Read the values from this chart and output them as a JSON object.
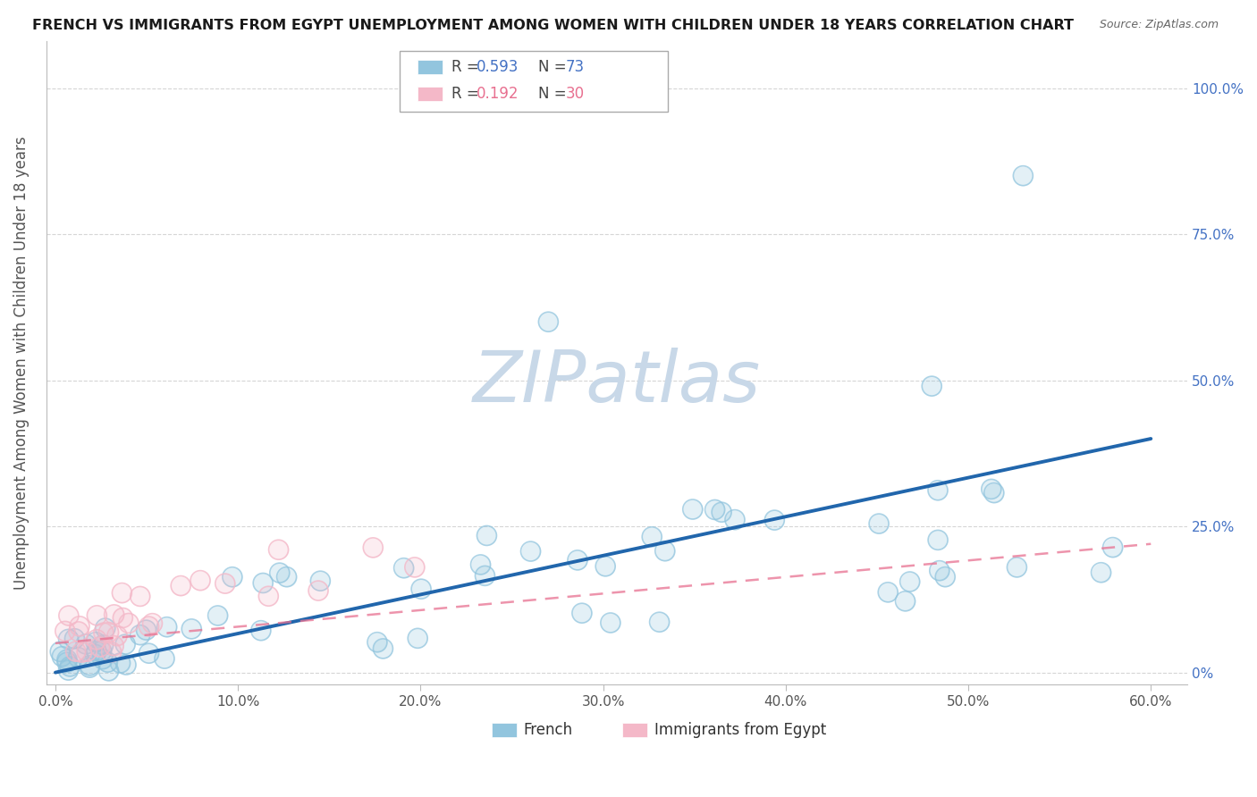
{
  "title": "FRENCH VS IMMIGRANTS FROM EGYPT UNEMPLOYMENT AMONG WOMEN WITH CHILDREN UNDER 18 YEARS CORRELATION CHART",
  "source": "Source: ZipAtlas.com",
  "ylabel": "Unemployment Among Women with Children Under 18 years",
  "xlim": [
    -0.005,
    0.62
  ],
  "ylim": [
    -0.02,
    1.08
  ],
  "french_R": 0.593,
  "french_N": 73,
  "egypt_R": 0.192,
  "egypt_N": 30,
  "french_color": "#92C5DE",
  "egypt_color": "#F4B8C8",
  "french_line_color": "#2166AC",
  "egypt_line_color": "#E87090",
  "watermark": "ZIPatlas",
  "watermark_color": "#C8D8E8",
  "x_tick_vals": [
    0.0,
    0.1,
    0.2,
    0.3,
    0.4,
    0.5,
    0.6
  ],
  "x_tick_labels": [
    "0.0%",
    "10.0%",
    "20.0%",
    "30.0%",
    "40.0%",
    "50.0%",
    "60.0%"
  ],
  "y_tick_vals": [
    0.0,
    0.25,
    0.5,
    0.75,
    1.0
  ],
  "y_tick_labels_right": [
    "0%",
    "25.0%",
    "50.0%",
    "75.0%",
    "100.0%"
  ],
  "french_line_x": [
    0.0,
    0.6
  ],
  "french_line_y": [
    0.0,
    0.4
  ],
  "egypt_line_x": [
    0.0,
    0.6
  ],
  "egypt_line_y": [
    0.05,
    0.22
  ]
}
